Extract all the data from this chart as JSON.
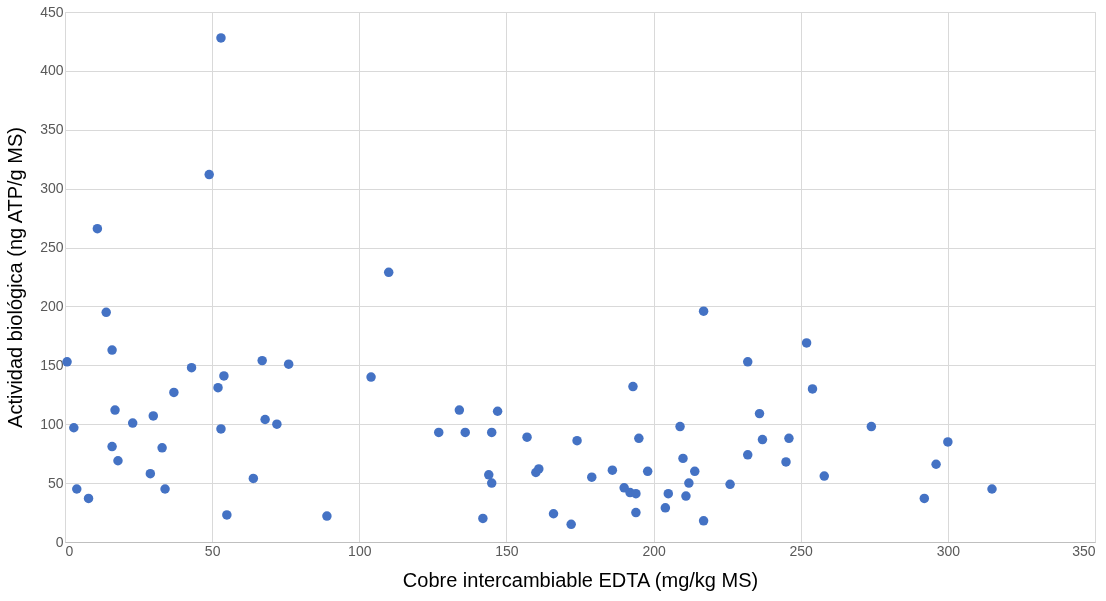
{
  "chart_data": {
    "type": "scatter",
    "xlabel": "Cobre intercambiable EDTA (mg/kg MS)",
    "ylabel": "Actividad biológica (ng ATP/g MS)",
    "x": [
      0.7,
      3,
      4,
      8,
      11,
      14,
      16,
      16,
      17,
      18,
      23,
      29,
      30,
      33,
      34,
      37,
      43,
      49,
      52,
      53,
      53,
      54,
      55,
      64,
      67,
      68,
      72,
      76,
      89,
      104,
      110,
      127,
      134,
      136,
      142,
      144,
      145,
      145,
      147,
      157,
      160,
      161,
      166,
      172,
      174,
      179,
      186,
      190,
      192,
      193,
      194,
      194,
      195,
      198,
      204,
      205,
      209,
      210,
      211,
      212,
      214,
      217,
      217,
      226,
      232,
      232,
      236,
      237,
      245,
      246,
      252,
      254,
      258,
      274,
      292,
      296,
      300,
      315
    ],
    "values": [
      153,
      97,
      45,
      37,
      266,
      195,
      163,
      81,
      112,
      69,
      101,
      58,
      107,
      80,
      45,
      127,
      148,
      312,
      131,
      428,
      96,
      141,
      23,
      54,
      154,
      104,
      100,
      151,
      22,
      140,
      229,
      93,
      112,
      93,
      20,
      57,
      93,
      50,
      111,
      89,
      59,
      62,
      24,
      15,
      86,
      55,
      61,
      46,
      42,
      132,
      41,
      25,
      88,
      60,
      29,
      41,
      98,
      71,
      39,
      50,
      60,
      196,
      18,
      49,
      74,
      153,
      109,
      87,
      68,
      88,
      169,
      130,
      56,
      98,
      37,
      66,
      85,
      45
    ],
    "color": "#4472c4",
    "marker": "circle",
    "xlim": [
      0,
      350
    ],
    "xticks": [
      0,
      50,
      100,
      150,
      200,
      250,
      300,
      350
    ],
    "ylim": [
      0,
      450
    ],
    "yticks": [
      0,
      50,
      100,
      150,
      200,
      250,
      300,
      350,
      400,
      450
    ],
    "grid": true
  }
}
